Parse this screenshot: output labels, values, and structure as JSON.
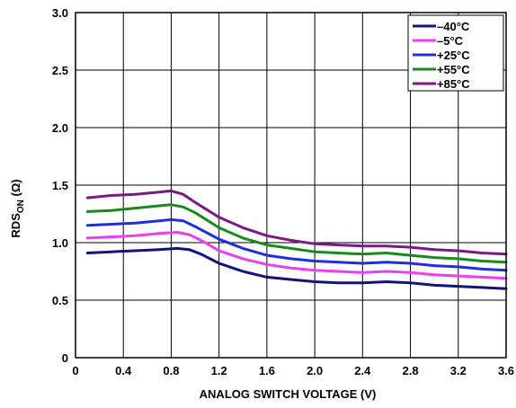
{
  "chart_data": {
    "type": "line",
    "xlabel": "ANALOG SWITCH VOLTAGE (V)",
    "ylabel_main": "RDS",
    "ylabel_sub": "ON",
    "ylabel_unit": " (Ω)",
    "xlim": [
      0,
      3.6
    ],
    "ylim": [
      0,
      3.0
    ],
    "xticks": [
      "0",
      "0.4",
      "0.8",
      "1.2",
      "1.6",
      "2.0",
      "2.4",
      "2.8",
      "3.2",
      "3.6"
    ],
    "yticks": [
      "0",
      "0.5",
      "1.0",
      "1.5",
      "2.0",
      "2.5",
      "3.0"
    ],
    "grid": true,
    "legend_position": "top-right",
    "series": [
      {
        "name": "–40°C",
        "color": "#13137a",
        "points": [
          [
            0.1,
            0.91
          ],
          [
            0.3,
            0.92
          ],
          [
            0.5,
            0.93
          ],
          [
            0.7,
            0.94
          ],
          [
            0.85,
            0.95
          ],
          [
            0.95,
            0.94
          ],
          [
            1.05,
            0.9
          ],
          [
            1.2,
            0.82
          ],
          [
            1.4,
            0.75
          ],
          [
            1.6,
            0.7
          ],
          [
            1.8,
            0.68
          ],
          [
            2.0,
            0.66
          ],
          [
            2.2,
            0.65
          ],
          [
            2.4,
            0.65
          ],
          [
            2.6,
            0.66
          ],
          [
            2.8,
            0.65
          ],
          [
            3.0,
            0.63
          ],
          [
            3.2,
            0.62
          ],
          [
            3.4,
            0.61
          ],
          [
            3.6,
            0.6
          ]
        ]
      },
      {
        "name": "–5°C",
        "color": "#f03cf0",
        "points": [
          [
            0.1,
            1.04
          ],
          [
            0.3,
            1.05
          ],
          [
            0.5,
            1.06
          ],
          [
            0.7,
            1.08
          ],
          [
            0.85,
            1.09
          ],
          [
            0.95,
            1.07
          ],
          [
            1.05,
            1.02
          ],
          [
            1.2,
            0.93
          ],
          [
            1.4,
            0.86
          ],
          [
            1.6,
            0.81
          ],
          [
            1.8,
            0.78
          ],
          [
            2.0,
            0.76
          ],
          [
            2.2,
            0.75
          ],
          [
            2.4,
            0.74
          ],
          [
            2.6,
            0.75
          ],
          [
            2.8,
            0.74
          ],
          [
            3.0,
            0.72
          ],
          [
            3.2,
            0.71
          ],
          [
            3.4,
            0.7
          ],
          [
            3.6,
            0.69
          ]
        ]
      },
      {
        "name": "+25°C",
        "color": "#1f2fe0",
        "points": [
          [
            0.1,
            1.15
          ],
          [
            0.3,
            1.16
          ],
          [
            0.5,
            1.17
          ],
          [
            0.7,
            1.19
          ],
          [
            0.8,
            1.2
          ],
          [
            0.9,
            1.19
          ],
          [
            1.0,
            1.14
          ],
          [
            1.2,
            1.03
          ],
          [
            1.4,
            0.95
          ],
          [
            1.6,
            0.89
          ],
          [
            1.8,
            0.86
          ],
          [
            2.0,
            0.84
          ],
          [
            2.2,
            0.83
          ],
          [
            2.4,
            0.82
          ],
          [
            2.6,
            0.83
          ],
          [
            2.8,
            0.82
          ],
          [
            3.0,
            0.8
          ],
          [
            3.2,
            0.79
          ],
          [
            3.4,
            0.77
          ],
          [
            3.6,
            0.76
          ]
        ]
      },
      {
        "name": "+55°C",
        "color": "#1a8a1a",
        "points": [
          [
            0.1,
            1.27
          ],
          [
            0.3,
            1.28
          ],
          [
            0.5,
            1.3
          ],
          [
            0.7,
            1.32
          ],
          [
            0.8,
            1.33
          ],
          [
            0.9,
            1.31
          ],
          [
            1.0,
            1.26
          ],
          [
            1.2,
            1.13
          ],
          [
            1.4,
            1.04
          ],
          [
            1.6,
            0.98
          ],
          [
            1.8,
            0.95
          ],
          [
            2.0,
            0.92
          ],
          [
            2.2,
            0.91
          ],
          [
            2.4,
            0.9
          ],
          [
            2.6,
            0.91
          ],
          [
            2.8,
            0.89
          ],
          [
            3.0,
            0.87
          ],
          [
            3.2,
            0.86
          ],
          [
            3.4,
            0.84
          ],
          [
            3.6,
            0.83
          ]
        ]
      },
      {
        "name": "+85°C",
        "color": "#7a1a82",
        "points": [
          [
            0.1,
            1.39
          ],
          [
            0.3,
            1.41
          ],
          [
            0.5,
            1.42
          ],
          [
            0.7,
            1.44
          ],
          [
            0.8,
            1.45
          ],
          [
            0.9,
            1.42
          ],
          [
            1.0,
            1.35
          ],
          [
            1.2,
            1.22
          ],
          [
            1.4,
            1.13
          ],
          [
            1.6,
            1.06
          ],
          [
            1.8,
            1.02
          ],
          [
            2.0,
            0.99
          ],
          [
            2.2,
            0.98
          ],
          [
            2.4,
            0.97
          ],
          [
            2.6,
            0.97
          ],
          [
            2.8,
            0.96
          ],
          [
            3.0,
            0.94
          ],
          [
            3.2,
            0.93
          ],
          [
            3.4,
            0.91
          ],
          [
            3.6,
            0.9
          ]
        ]
      }
    ]
  }
}
